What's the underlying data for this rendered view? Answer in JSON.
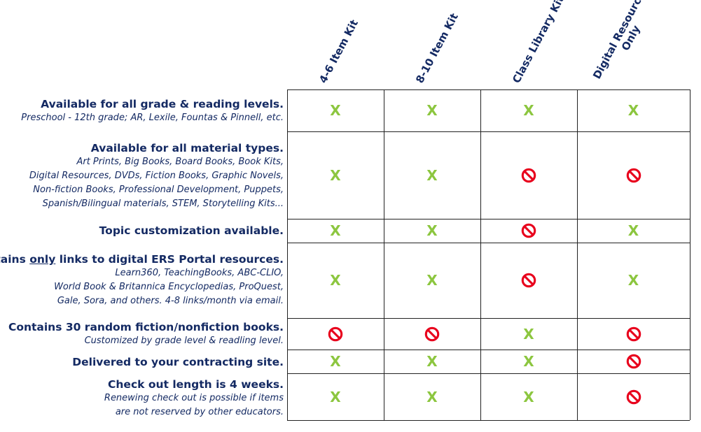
{
  "columns": [
    {
      "id": "c1",
      "lines": [
        "4-6 Item Kit"
      ]
    },
    {
      "id": "c2",
      "lines": [
        "8-10 Item Kit"
      ]
    },
    {
      "id": "c3",
      "lines": [
        "Class Library Kit"
      ]
    },
    {
      "id": "c4",
      "lines": [
        "Digital Resources",
        "Only"
      ]
    }
  ],
  "rows": [
    {
      "title": "Available for all grade & reading levels.",
      "desc": [
        "Preschool - 12th grade; AR, Lexile, Fountas & Pinnell, etc."
      ],
      "marks": [
        "x",
        "x",
        "x",
        "x"
      ]
    },
    {
      "title": "Available for all material types.",
      "desc": [
        "Art Prints, Big Books, Board Books, Book Kits,",
        "Digital Resources, DVDs, Fiction Books, Graphic Novels,",
        "Non-fiction Books, Professional Development, Puppets,",
        "Spanish/Bilingual materials, STEM, Storytelling Kits..."
      ],
      "marks": [
        "x",
        "x",
        "no",
        "no"
      ]
    },
    {
      "title": "Topic customization available.",
      "desc": [],
      "marks": [
        "x",
        "x",
        "no",
        "x"
      ]
    },
    {
      "title_parts": [
        "Contains ",
        "only",
        " links to digital ERS Portal resources."
      ],
      "desc": [
        "Learn360, TeachingBooks, ABC-CLIO,",
        "World Book & Britannica Encyclopedias, ProQuest,",
        "Gale, Sora, and others. 4-8 links/month via email."
      ],
      "marks": [
        "x",
        "x",
        "no",
        "x"
      ]
    },
    {
      "title": "Contains 30 random fiction/nonfiction books.",
      "desc": [
        "Customized by grade level & readling level."
      ],
      "marks": [
        "no",
        "no",
        "x",
        "no"
      ]
    },
    {
      "title": "Delivered to your contracting site.",
      "desc": [],
      "marks": [
        "x",
        "x",
        "x",
        "no"
      ]
    },
    {
      "title": "Check out length is 4 weeks.",
      "desc": [
        "Renewing check out is possible if items",
        "are not reserved by other educators."
      ],
      "marks": [
        "x",
        "x",
        "x",
        "no"
      ]
    }
  ],
  "mark_symbols": {
    "x": "X"
  },
  "colors": {
    "text": "#142a63",
    "check": "#8cc63f",
    "no": "#e8001c"
  }
}
